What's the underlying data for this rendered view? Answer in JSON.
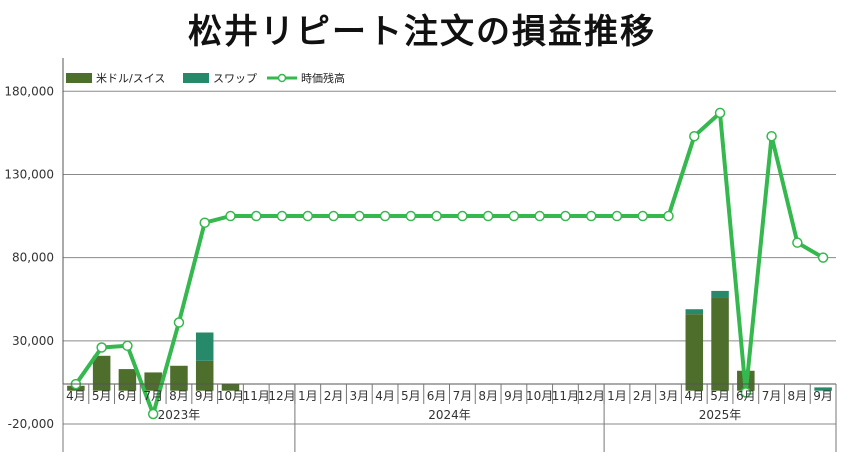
{
  "chart_data": {
    "type": "bar",
    "title": "松井リピート注文の損益推移",
    "categories": [
      "4月",
      "5月",
      "6月",
      "7月",
      "8月",
      "9月",
      "10月",
      "11月",
      "12月",
      "1月",
      "2月",
      "3月",
      "4月",
      "5月",
      "6月",
      "7月",
      "8月",
      "9月",
      "10月",
      "11月",
      "12月",
      "1月",
      "2月",
      "3月",
      "4月",
      "5月",
      "6月",
      "7月",
      "8月",
      "9月"
    ],
    "years": [
      {
        "label": "2023年",
        "count": 9
      },
      {
        "label": "2024年",
        "count": 12
      },
      {
        "label": "2025年",
        "count": 9
      }
    ],
    "ylim": [
      -20000,
      200000
    ],
    "y_ticks": [
      {
        "value": 180000,
        "label": "180,000",
        "color": "#222222"
      },
      {
        "value": 130000,
        "label": "130,000",
        "color": "#222222"
      },
      {
        "value": 80000,
        "label": "80,000",
        "color": "#222222"
      },
      {
        "value": 30000,
        "label": "30,000",
        "color": "#222222"
      },
      {
        "value": -20000,
        "label": "-20,000",
        "color": "#e8001c"
      }
    ],
    "legend": {
      "position": "top-left"
    },
    "series": [
      {
        "name": "米ドル/スイス",
        "kind": "bar",
        "color": "#4e6e2c",
        "values": [
          3000,
          21000,
          13000,
          11000,
          15000,
          18000,
          4000,
          0,
          0,
          0,
          0,
          0,
          0,
          0,
          0,
          0,
          0,
          0,
          0,
          0,
          0,
          0,
          0,
          0,
          46000,
          56000,
          12000,
          0,
          0,
          0
        ]
      },
      {
        "name": "スワップ",
        "kind": "bar",
        "color": "#268a6a",
        "values": [
          0,
          0,
          0,
          0,
          0,
          17000,
          0,
          0,
          0,
          0,
          0,
          0,
          0,
          0,
          0,
          0,
          0,
          0,
          0,
          0,
          0,
          0,
          0,
          0,
          3000,
          4000,
          0,
          0,
          0,
          2000
        ]
      },
      {
        "name": "時価残高",
        "kind": "line",
        "color": "#35b84e",
        "values": [
          4000,
          26000,
          27000,
          -14000,
          41000,
          101000,
          105000,
          105000,
          105000,
          105000,
          105000,
          105000,
          105000,
          105000,
          105000,
          105000,
          105000,
          105000,
          105000,
          105000,
          105000,
          105000,
          105000,
          105000,
          153000,
          167000,
          -1000,
          153000,
          89000,
          80000
        ]
      }
    ]
  }
}
